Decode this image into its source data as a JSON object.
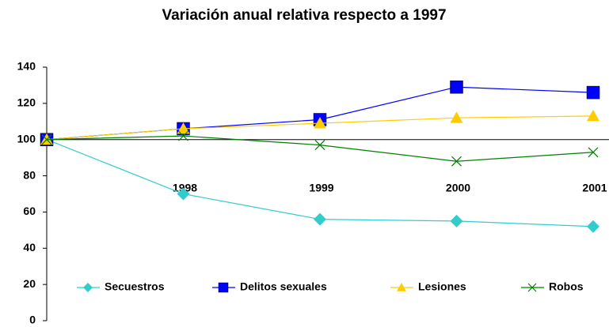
{
  "chart_data": {
    "type": "line",
    "title": "Variación anual relativa respecto a 1997",
    "categories": [
      null,
      "1998",
      "1999",
      "2000",
      "2001"
    ],
    "series": [
      {
        "name": "Secuestros",
        "color": "#33cccc",
        "marker": "diamond",
        "values": [
          100,
          70,
          56,
          55,
          52
        ]
      },
      {
        "name": "Delitos sexuales",
        "color": "#0000ff",
        "marker": "square",
        "values": [
          100,
          106,
          111,
          129,
          126
        ]
      },
      {
        "name": "Lesiones",
        "color": "#ffcc00",
        "marker": "triangle",
        "values": [
          100,
          106,
          109,
          112,
          113
        ]
      },
      {
        "name": "Robos",
        "color": "#008000",
        "marker": "x",
        "values": [
          100,
          102,
          97,
          88,
          93
        ]
      }
    ],
    "ylim": [
      0,
      140
    ],
    "yticks": [
      0,
      20,
      40,
      60,
      80,
      100,
      120,
      140
    ],
    "x_axis_crosses": 100,
    "grid": false,
    "legend": "bottom"
  }
}
